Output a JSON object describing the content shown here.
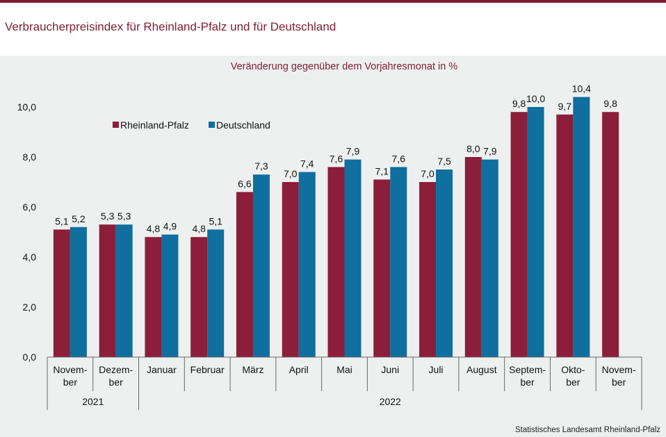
{
  "header": {
    "title": "Verbraucherpreisindex für Rheinland-Pfalz und für Deutschland"
  },
  "footer": {
    "source": "Statistisches Landesamt Rheinland-Pfalz"
  },
  "chart_data": {
    "type": "bar",
    "subtitle": "Veränderung gegenüber dem Vorjahresmonat in %",
    "categories": [
      [
        "Novem-",
        "ber"
      ],
      [
        "Dezem-",
        "ber"
      ],
      [
        "Januar"
      ],
      [
        "Februar"
      ],
      [
        "März"
      ],
      [
        "April"
      ],
      [
        "Mai"
      ],
      [
        "Juni"
      ],
      [
        "Juli"
      ],
      [
        "August"
      ],
      [
        "Septem-",
        "ber"
      ],
      [
        "Okto-",
        "ber"
      ],
      [
        "Novem-",
        "ber"
      ]
    ],
    "year_groups": [
      {
        "label": "2021",
        "from": 0,
        "to": 1
      },
      {
        "label": "2022",
        "from": 2,
        "to": 12
      }
    ],
    "series": [
      {
        "name": "Rheinland-Pfalz",
        "color": "#8b1e3a",
        "values": [
          5.1,
          5.3,
          4.8,
          4.8,
          6.6,
          7.0,
          7.6,
          7.1,
          7.0,
          8.0,
          9.8,
          9.7,
          9.8
        ],
        "labels": [
          "5,1",
          "5,3",
          "4,8",
          "4,8",
          "6,6",
          "7,0",
          "7,6",
          "7,1",
          "7,0",
          "8,0",
          "9,8",
          "9,7",
          "9,8"
        ]
      },
      {
        "name": "Deutschland",
        "color": "#0f6f9e",
        "values": [
          5.2,
          5.3,
          4.9,
          5.1,
          7.3,
          7.4,
          7.9,
          7.6,
          7.5,
          7.9,
          10.0,
          10.4,
          null
        ],
        "labels": [
          "5,2",
          "5,3",
          "4,9",
          "5,1",
          "7,3",
          "7,4",
          "7,9",
          "7,6",
          "7,5",
          "7,9",
          "10,0",
          "10,4",
          ""
        ]
      }
    ],
    "ylim": [
      0,
      10
    ],
    "yticks": [
      0,
      2,
      4,
      6,
      8,
      10
    ],
    "ytick_labels": [
      "0,0",
      "2,0",
      "4,0",
      "6,0",
      "8,0",
      "10,0"
    ],
    "grid": false,
    "legend": "top-left"
  }
}
